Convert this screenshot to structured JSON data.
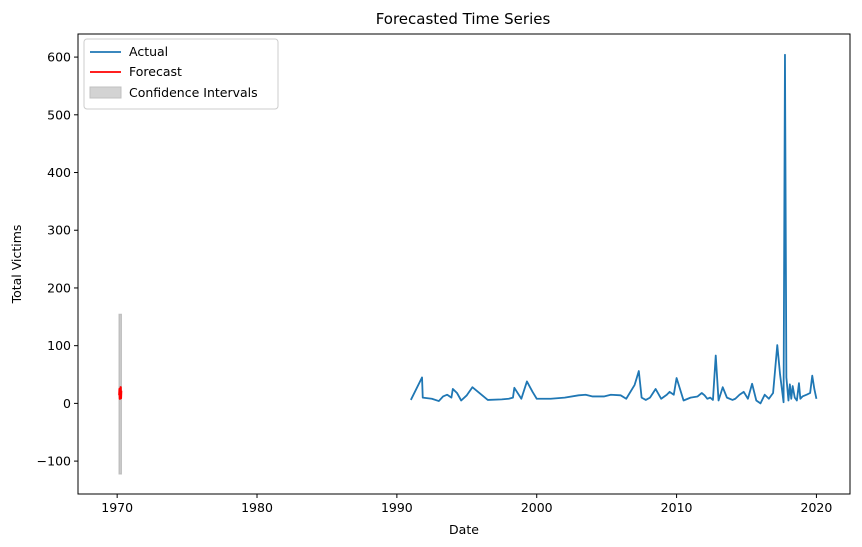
{
  "chart_data": {
    "type": "line",
    "title": "Forecasted Time Series",
    "xlabel": "Date",
    "ylabel": "Total Victims",
    "xlim": [
      1967.2,
      2022.4
    ],
    "ylim": [
      -157,
      640
    ],
    "x_ticks": [
      1970,
      1980,
      1990,
      2000,
      2010,
      2020
    ],
    "x_tick_labels": [
      "1970",
      "1980",
      "1990",
      "2000",
      "2010",
      "2020"
    ],
    "y_ticks": [
      -100,
      0,
      100,
      200,
      300,
      400,
      500,
      600
    ],
    "y_tick_labels": [
      "−100",
      "0",
      "100",
      "200",
      "300",
      "400",
      "500",
      "600"
    ],
    "grid": false,
    "legend_position": "top-left",
    "legend": [
      "Actual",
      "Forecast",
      "Confidence Intervals"
    ],
    "colors": {
      "actual": "#1f77b4",
      "forecast": "#ff0000",
      "ci": "#d3d3d3",
      "ci_edge": "#c0c0c0"
    },
    "series": [
      {
        "name": "Actual",
        "x": [
          1991.0,
          1991.8,
          1991.85,
          1992.5,
          1993.0,
          1993.3,
          1993.6,
          1993.9,
          1994.0,
          1994.3,
          1994.6,
          1995.0,
          1995.4,
          1996.5,
          1997.5,
          1998.0,
          1998.3,
          1998.4,
          1998.9,
          1999.3,
          1999.7,
          2000.0,
          2001.0,
          2002.0,
          2003.0,
          2003.5,
          2004.0,
          2004.8,
          2005.3,
          2006.0,
          2006.4,
          2007.0,
          2007.3,
          2007.5,
          2007.8,
          2008.1,
          2008.5,
          2008.9,
          2009.3,
          2009.5,
          2009.8,
          2010.0,
          2010.5,
          2011.0,
          2011.5,
          2011.8,
          2012.0,
          2012.2,
          2012.4,
          2012.6,
          2012.8,
          2013.0,
          2013.3,
          2013.6,
          2014.0,
          2014.2,
          2014.5,
          2014.8,
          2015.1,
          2015.4,
          2015.7,
          2016.0,
          2016.3,
          2016.6,
          2016.9,
          2017.2,
          2017.4,
          2017.65,
          2017.75,
          2017.85,
          2018.0,
          2018.1,
          2018.2,
          2018.3,
          2018.45,
          2018.6,
          2018.75,
          2018.85,
          2019.0,
          2019.3,
          2019.55,
          2019.7,
          2019.85,
          2020.0
        ],
        "values": [
          6,
          45,
          10,
          8,
          4,
          12,
          15,
          10,
          25,
          18,
          5,
          14,
          28,
          6,
          7,
          8,
          10,
          27,
          8,
          38,
          20,
          8,
          8,
          10,
          14,
          15,
          12,
          12,
          15,
          14,
          8,
          32,
          56,
          10,
          6,
          10,
          25,
          8,
          15,
          20,
          15,
          44,
          5,
          10,
          12,
          18,
          14,
          8,
          10,
          6,
          83,
          5,
          28,
          10,
          6,
          8,
          15,
          20,
          8,
          34,
          5,
          0,
          15,
          8,
          18,
          101,
          50,
          2,
          604,
          45,
          5,
          33,
          8,
          30,
          10,
          5,
          35,
          8,
          12,
          15,
          18,
          48,
          25,
          8
        ]
      },
      {
        "name": "Forecast",
        "x": [
          1970.15,
          1970.17,
          1970.19,
          1970.21,
          1970.23,
          1970.25,
          1970.27,
          1970.29
        ],
        "values": [
          14,
          25,
          8,
          20,
          12,
          28,
          9,
          22
        ]
      },
      {
        "name": "Confidence Intervals",
        "x": [
          1970.15,
          1970.29
        ],
        "lower": [
          -122,
          -122
        ],
        "upper": [
          154,
          154
        ]
      }
    ]
  }
}
